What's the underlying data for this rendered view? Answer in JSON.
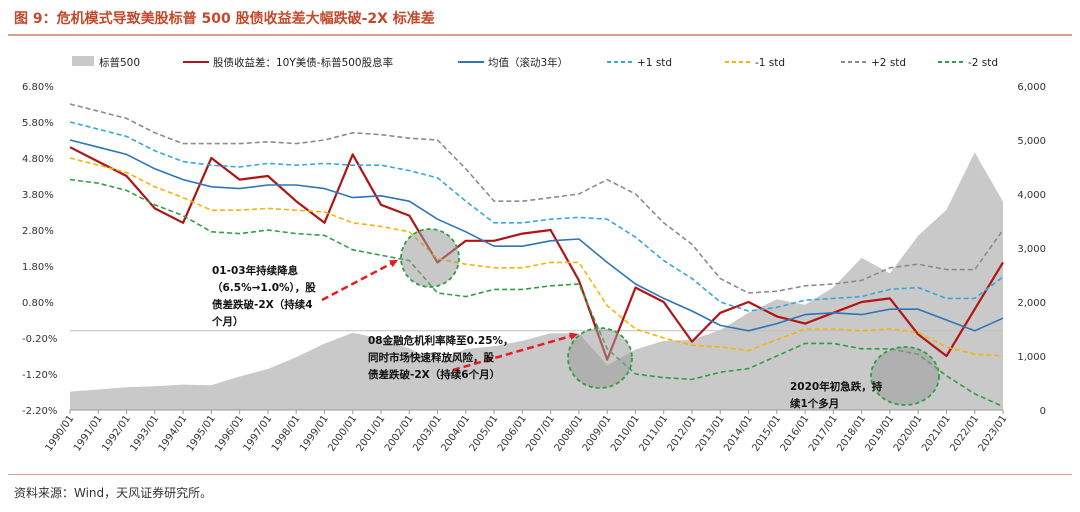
{
  "title": "图 9：危机模式导致美股标普 500 股债收益差大幅跌破-2X 标准差",
  "source": "资料来源：Wind，天风证券研究所。",
  "chart_data": {
    "type": "area+line",
    "x": [
      "1990/01",
      "1991/01",
      "1992/01",
      "1993/01",
      "1994/01",
      "1995/01",
      "1996/01",
      "1997/01",
      "1998/01",
      "1999/01",
      "2000/01",
      "2001/01",
      "2002/01",
      "2003/01",
      "2004/01",
      "2005/01",
      "2006/01",
      "2007/01",
      "2008/01",
      "2009/01",
      "2010/01",
      "2011/01",
      "2012/01",
      "2013/01",
      "2014/01",
      "2015/01",
      "2016/01",
      "2017/01",
      "2018/01",
      "2019/01",
      "2020/01",
      "2021/01",
      "2022/01",
      "2023/01"
    ],
    "y_left": {
      "range": [
        -2.2,
        6.8
      ],
      "ticks": [
        "6.80%",
        "5.80%",
        "4.80%",
        "3.80%",
        "2.80%",
        "1.80%",
        "0.80%",
        "-0.20%",
        "-1.20%",
        "-2.20%"
      ]
    },
    "y_right": {
      "range": [
        0,
        6000
      ],
      "ticks": [
        "6,000",
        "5,000",
        "4,000",
        "3,000",
        "2,000",
        "1,000",
        "0"
      ]
    },
    "legend": [
      {
        "name": "标普500",
        "color": "#c9c9c9",
        "style": "area"
      },
      {
        "name": "股债收益差：10Y美债-标普500股息率",
        "color": "#b01515",
        "style": "solid"
      },
      {
        "name": "均值（滚动3年）",
        "color": "#2e75b6",
        "style": "solid"
      },
      {
        "name": "+1 std",
        "color": "#35a8e0",
        "style": "dashed"
      },
      {
        "name": "-1 std",
        "color": "#f2b705",
        "style": "dashed"
      },
      {
        "name": "+2 std",
        "color": "#8c8c8c",
        "style": "dashed"
      },
      {
        "name": "-2 std",
        "color": "#2ea043",
        "style": "dashed"
      }
    ],
    "series": [
      {
        "name": "标普500",
        "axis": "right",
        "values": [
          340,
          380,
          420,
          440,
          470,
          460,
          620,
          760,
          980,
          1230,
          1430,
          1320,
          1140,
          880,
          1130,
          1180,
          1280,
          1420,
          1420,
          830,
          1120,
          1280,
          1300,
          1480,
          1800,
          2050,
          1950,
          2270,
          2820,
          2530,
          3230,
          3710,
          4770,
          3860
        ]
      },
      {
        "name": "股债收益差：10Y美债-标普500股息率",
        "axis": "left",
        "values": [
          5.1,
          4.7,
          4.3,
          3.4,
          3.0,
          4.8,
          4.2,
          4.3,
          3.6,
          3.0,
          4.9,
          3.5,
          3.2,
          1.9,
          2.5,
          2.5,
          2.7,
          2.8,
          1.4,
          -0.8,
          1.2,
          0.8,
          -0.3,
          0.5,
          0.8,
          0.4,
          0.2,
          0.5,
          0.8,
          0.9,
          -0.1,
          -0.7,
          0.6,
          1.9
        ]
      },
      {
        "name": "均值（滚动3年）",
        "axis": "left",
        "values": [
          5.3,
          5.1,
          4.9,
          4.5,
          4.2,
          4.0,
          3.95,
          4.05,
          4.05,
          3.95,
          3.7,
          3.75,
          3.6,
          3.1,
          2.75,
          2.35,
          2.35,
          2.5,
          2.55,
          1.9,
          1.3,
          0.9,
          0.55,
          0.15,
          0.0,
          0.2,
          0.45,
          0.5,
          0.45,
          0.6,
          0.6,
          0.3,
          0.0,
          0.35
        ]
      },
      {
        "name": "+1 std",
        "axis": "left",
        "values": [
          5.8,
          5.6,
          5.4,
          5.0,
          4.7,
          4.6,
          4.55,
          4.65,
          4.6,
          4.65,
          4.6,
          4.6,
          4.45,
          4.25,
          3.6,
          3.0,
          3.0,
          3.1,
          3.15,
          3.1,
          2.6,
          1.95,
          1.45,
          0.8,
          0.55,
          0.65,
          0.85,
          0.9,
          0.95,
          1.15,
          1.2,
          0.9,
          0.9,
          1.5
        ]
      },
      {
        "name": "-1 std",
        "axis": "left",
        "values": [
          4.8,
          4.6,
          4.4,
          4.0,
          3.7,
          3.35,
          3.35,
          3.4,
          3.35,
          3.3,
          3.0,
          2.9,
          2.75,
          2.0,
          1.85,
          1.75,
          1.75,
          1.9,
          1.9,
          0.7,
          0.05,
          -0.2,
          -0.4,
          -0.45,
          -0.55,
          -0.25,
          0.05,
          0.05,
          0.0,
          0.05,
          -0.05,
          -0.45,
          -0.65,
          -0.7
        ]
      },
      {
        "name": "+2 std",
        "axis": "left",
        "values": [
          6.3,
          6.1,
          5.9,
          5.5,
          5.2,
          5.2,
          5.2,
          5.25,
          5.2,
          5.3,
          5.5,
          5.45,
          5.35,
          5.3,
          4.5,
          3.6,
          3.6,
          3.7,
          3.8,
          4.2,
          3.8,
          3.0,
          2.4,
          1.45,
          1.05,
          1.1,
          1.25,
          1.3,
          1.4,
          1.75,
          1.85,
          1.7,
          1.7,
          2.8
        ]
      },
      {
        "name": "-2 std",
        "axis": "left",
        "values": [
          4.2,
          4.1,
          3.9,
          3.5,
          3.2,
          2.75,
          2.7,
          2.8,
          2.7,
          2.65,
          2.25,
          2.1,
          1.95,
          1.05,
          0.95,
          1.15,
          1.15,
          1.25,
          1.3,
          -0.5,
          -1.2,
          -1.3,
          -1.35,
          -1.15,
          -1.05,
          -0.7,
          -0.35,
          -0.35,
          -0.5,
          -0.5,
          -0.65,
          -1.25,
          -1.75,
          -2.1
        ]
      }
    ],
    "annotations": [
      {
        "text": [
          "01-03年持续降息",
          "（6.5%→1.0%），股",
          "债差跌破-2X（持续4",
          "个月）"
        ]
      },
      {
        "text": [
          "08金融危机利率降至0.25%，",
          "同时市场快速释放风险，股",
          "债差跌破-2X（持续6个月）"
        ]
      },
      {
        "text": [
          "2020年初急跌，持",
          "续1个多月"
        ]
      }
    ]
  }
}
